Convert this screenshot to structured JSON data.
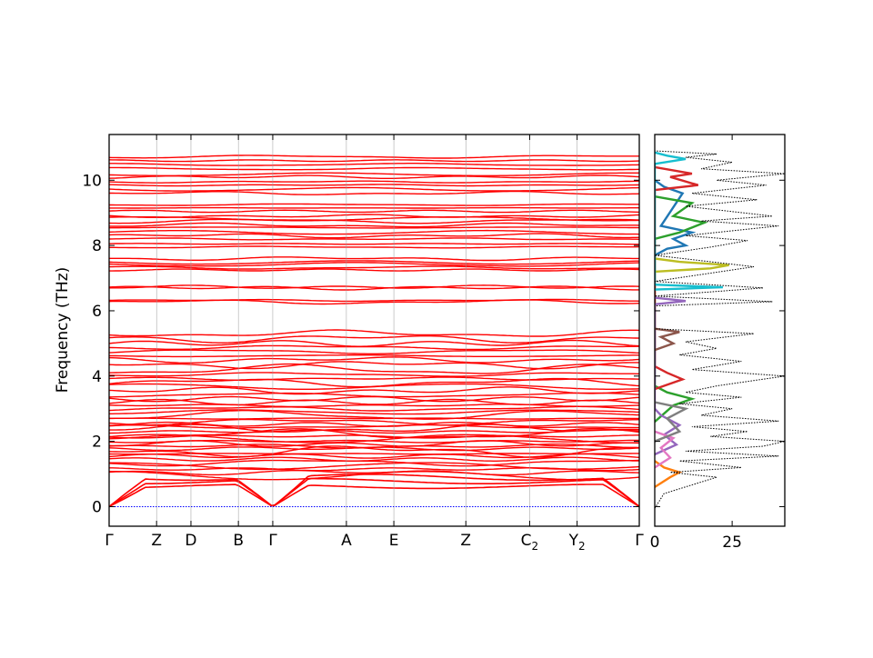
{
  "chart_data": [
    {
      "type": "line",
      "panel": "band-structure",
      "ylabel": "Frequency (THz)",
      "ylim": [
        -0.6,
        11.4
      ],
      "yticks": [
        0,
        2,
        4,
        6,
        8,
        10
      ],
      "ytick_labels": [
        "0",
        "2",
        "4",
        "6",
        "8",
        "10"
      ],
      "kpoints": [
        {
          "label": "Γ",
          "sub": "",
          "x": 0.0
        },
        {
          "label": "Z",
          "sub": "",
          "x": 0.29
        },
        {
          "label": "D",
          "sub": "",
          "x": 0.5
        },
        {
          "label": "B",
          "sub": "",
          "x": 0.79
        },
        {
          "label": "Γ",
          "sub": "",
          "x": 1.0
        },
        {
          "label": "A",
          "sub": "",
          "x": 1.45
        },
        {
          "label": "E",
          "sub": "",
          "x": 1.74
        },
        {
          "label": "Z",
          "sub": "",
          "x": 2.18
        },
        {
          "label": "C",
          "sub": "2",
          "x": 2.57
        },
        {
          "label": "Y",
          "sub": "2",
          "x": 2.86
        },
        {
          "label": "Γ",
          "sub": "",
          "x": 3.24
        }
      ],
      "zero_line": {
        "y": 0,
        "color": "#0000ff",
        "style": "dotted"
      },
      "band_color": "#ff0000",
      "band_groups": {
        "optical_high": [
          6.27,
          6.32,
          6.7,
          6.73,
          7.25,
          7.32,
          7.42,
          7.48,
          7.6,
          7.95,
          8.05,
          8.2,
          8.3,
          8.4,
          8.55,
          8.62,
          8.75,
          8.82,
          8.9,
          9.05,
          9.15,
          9.25,
          9.6,
          9.72,
          9.85,
          9.95,
          10.1,
          10.18,
          10.35,
          10.48,
          10.6,
          10.72
        ],
        "acoustic_high": [
          0.95,
          1.05,
          1.15,
          1.25,
          1.35,
          1.45,
          1.55,
          1.62,
          1.7,
          1.78,
          1.85,
          1.92,
          2.0,
          2.08,
          2.15,
          2.22,
          2.3,
          2.38,
          2.45,
          2.52,
          2.6,
          2.7,
          2.8,
          2.9,
          3.0,
          3.1,
          3.2,
          3.3,
          3.42,
          3.55,
          3.68,
          3.8,
          3.92,
          4.05,
          4.2,
          4.35,
          4.5,
          4.62,
          4.75,
          4.88,
          5.0,
          5.15,
          5.3
        ]
      }
    },
    {
      "type": "line",
      "panel": "dos",
      "xlim": [
        0,
        42
      ],
      "xticks": [
        0,
        25
      ],
      "xtick_labels": [
        "0",
        "25"
      ],
      "ylim": [
        -0.6,
        11.4
      ],
      "total_dos": {
        "color": "#000000",
        "style": "dotted",
        "points": [
          [
            0,
            -0.05
          ],
          [
            3,
            0.4
          ],
          [
            20,
            0.9
          ],
          [
            5,
            1.05
          ],
          [
            28,
            1.2
          ],
          [
            8,
            1.4
          ],
          [
            40,
            1.55
          ],
          [
            10,
            1.7
          ],
          [
            35,
            1.85
          ],
          [
            42,
            2.0
          ],
          [
            18,
            2.15
          ],
          [
            30,
            2.3
          ],
          [
            12,
            2.45
          ],
          [
            40,
            2.62
          ],
          [
            15,
            2.8
          ],
          [
            25,
            3.0
          ],
          [
            8,
            3.15
          ],
          [
            28,
            3.35
          ],
          [
            10,
            3.5
          ],
          [
            20,
            3.7
          ],
          [
            42,
            4.0
          ],
          [
            12,
            4.2
          ],
          [
            28,
            4.45
          ],
          [
            8,
            4.65
          ],
          [
            20,
            4.85
          ],
          [
            10,
            5.05
          ],
          [
            32,
            5.3
          ],
          [
            0,
            5.45
          ],
          [
            0,
            6.15
          ],
          [
            38,
            6.28
          ],
          [
            0,
            6.45
          ],
          [
            35,
            6.7
          ],
          [
            0,
            6.9
          ],
          [
            32,
            7.35
          ],
          [
            0,
            7.7
          ],
          [
            18,
            7.95
          ],
          [
            30,
            8.15
          ],
          [
            10,
            8.3
          ],
          [
            40,
            8.6
          ],
          [
            15,
            8.75
          ],
          [
            38,
            8.9
          ],
          [
            10,
            9.2
          ],
          [
            33,
            9.4
          ],
          [
            12,
            9.6
          ],
          [
            36,
            9.85
          ],
          [
            20,
            10.0
          ],
          [
            42,
            10.2
          ],
          [
            15,
            10.35
          ],
          [
            25,
            10.55
          ],
          [
            10,
            10.7
          ],
          [
            20,
            10.8
          ],
          [
            0,
            10.9
          ]
        ]
      },
      "projected_dos": [
        {
          "color": "#1f77b4",
          "points": [
            [
              0,
              7.7
            ],
            [
              4,
              7.9
            ],
            [
              10,
              8.0
            ],
            [
              6,
              8.2
            ],
            [
              12,
              8.4
            ],
            [
              2,
              8.6
            ],
            [
              9,
              9.6
            ],
            [
              3,
              9.8
            ],
            [
              0,
              10.0
            ]
          ]
        },
        {
          "color": "#ff7f0e",
          "points": [
            [
              0,
              0.6
            ],
            [
              5,
              0.9
            ],
            [
              8,
              1.05
            ],
            [
              3,
              1.2
            ],
            [
              0,
              1.4
            ]
          ]
        },
        {
          "color": "#2ca02c",
          "points": [
            [
              0,
              2.6
            ],
            [
              6,
              3.1
            ],
            [
              12,
              3.3
            ],
            [
              4,
              3.5
            ],
            [
              0,
              3.7
            ],
            [
              0,
              8.2
            ],
            [
              8,
              8.4
            ],
            [
              16,
              8.7
            ],
            [
              6,
              8.9
            ],
            [
              12,
              9.3
            ],
            [
              0,
              9.5
            ]
          ]
        },
        {
          "color": "#d62728",
          "points": [
            [
              0,
              3.6
            ],
            [
              9,
              3.9
            ],
            [
              4,
              4.1
            ],
            [
              0,
              4.3
            ],
            [
              0,
              9.7
            ],
            [
              14,
              9.85
            ],
            [
              5,
              10.1
            ],
            [
              12,
              10.2
            ],
            [
              0,
              10.4
            ]
          ]
        },
        {
          "color": "#9467bd",
          "points": [
            [
              0,
              1.6
            ],
            [
              7,
              1.9
            ],
            [
              3,
              2.2
            ],
            [
              8,
              2.5
            ],
            [
              2,
              2.8
            ],
            [
              0,
              3.0
            ],
            [
              0,
              6.2
            ],
            [
              10,
              6.3
            ],
            [
              0,
              6.4
            ]
          ]
        },
        {
          "color": "#8c564b",
          "points": [
            [
              0,
              4.8
            ],
            [
              6,
              5.0
            ],
            [
              2,
              5.2
            ],
            [
              8,
              5.35
            ],
            [
              0,
              5.45
            ]
          ]
        },
        {
          "color": "#e377c2",
          "points": [
            [
              0,
              1.2
            ],
            [
              5,
              1.5
            ],
            [
              2,
              1.8
            ],
            [
              6,
              2.1
            ],
            [
              0,
              2.3
            ]
          ]
        },
        {
          "color": "#7f7f7f",
          "points": [
            [
              0,
              2.0
            ],
            [
              8,
              2.3
            ],
            [
              4,
              2.7
            ],
            [
              10,
              3.0
            ],
            [
              0,
              3.2
            ]
          ]
        },
        {
          "color": "#bcbd22",
          "points": [
            [
              0,
              7.2
            ],
            [
              18,
              7.3
            ],
            [
              24,
              7.4
            ],
            [
              8,
              7.5
            ],
            [
              0,
              7.6
            ]
          ]
        },
        {
          "color": "#17becf",
          "points": [
            [
              0,
              6.65
            ],
            [
              22,
              6.72
            ],
            [
              0,
              6.8
            ],
            [
              0,
              10.5
            ],
            [
              10,
              10.65
            ],
            [
              4,
              10.75
            ],
            [
              0,
              10.85
            ]
          ]
        }
      ]
    }
  ]
}
